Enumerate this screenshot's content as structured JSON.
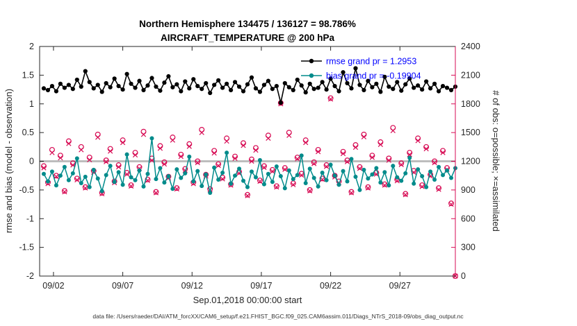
{
  "chart_data": {
    "type": "line",
    "title_line1": "Northern Hemisphere 134475 / 136127 = 98.786%",
    "title_line2": "AIRCRAFT_TEMPERATURE @ 200 hPa",
    "xlabel": "Sep.01,2018 00:00:00 start",
    "ylabel_left": "rmse and bias (model - observation)",
    "ylabel_right": "# of obs: o=possible; ×=assimilated",
    "footer": "data file: /Users/raeder/DAI/ATM_forcXX/CAM6_setup/f.e21.FHIST_BGC.f09_025.CAM6assim.011/Diags_NTrS_2018-09/obs_diag_output.nc",
    "xlim_days": [
      0,
      30
    ],
    "xticks_days": [
      1,
      6,
      11,
      16,
      21,
      26
    ],
    "xtick_labels": [
      "09/02",
      "09/07",
      "09/12",
      "09/17",
      "09/22",
      "09/27"
    ],
    "ylim_left": [
      -2,
      2
    ],
    "yticks_left": [
      -2,
      -1.5,
      -1,
      -0.5,
      0,
      0.5,
      1,
      1.5,
      2
    ],
    "ylim_right": [
      0,
      2400
    ],
    "yticks_right": [
      0,
      300,
      600,
      900,
      1200,
      1500,
      1800,
      2100,
      2400
    ],
    "grid": "off",
    "legend_position": "upper-right-inside",
    "colors": {
      "rmse": "#000000",
      "bias": "#008b8b",
      "obs": "#d70a53",
      "legend_text": "#0000ff",
      "zero_line": "#bdbdbd",
      "axis": "#262626"
    },
    "legend": [
      {
        "series": "rmse",
        "label": "rmse grand pr = 1.2953"
      },
      {
        "series": "bias",
        "label": "bias grand pr = -0.19904"
      }
    ],
    "rmse_grand_prior": 1.2953,
    "bias_grand_prior": -0.19904,
    "x_days": [
      0.3,
      0.6,
      0.9,
      1.2,
      1.5,
      1.8,
      2.1,
      2.4,
      2.7,
      3,
      3.3,
      3.6,
      3.9,
      4.2,
      4.5,
      4.8,
      5.1,
      5.4,
      5.7,
      6,
      6.3,
      6.6,
      6.9,
      7.2,
      7.5,
      7.8,
      8.1,
      8.4,
      8.7,
      9,
      9.3,
      9.6,
      9.9,
      10.2,
      10.5,
      10.8,
      11.1,
      11.4,
      11.7,
      12,
      12.3,
      12.6,
      12.9,
      13.2,
      13.5,
      13.8,
      14.1,
      14.4,
      14.7,
      15,
      15.3,
      15.6,
      15.9,
      16.2,
      16.5,
      16.8,
      17.1,
      17.4,
      17.7,
      18,
      18.3,
      18.6,
      18.9,
      19.2,
      19.5,
      19.8,
      20.1,
      20.4,
      20.7,
      21,
      21.3,
      21.6,
      21.9,
      22.2,
      22.5,
      22.8,
      23.1,
      23.4,
      23.7,
      24,
      24.3,
      24.6,
      24.9,
      25.2,
      25.5,
      25.8,
      26.1,
      26.4,
      26.7,
      27,
      27.3,
      27.6,
      27.9,
      28.2,
      28.5,
      28.8,
      29.1,
      29.4,
      29.7,
      30
    ],
    "series": [
      {
        "name": "rmse",
        "axis": "left",
        "marker": "filled-circle",
        "color_key": "rmse",
        "values": [
          1.27,
          1.24,
          1.31,
          1.22,
          1.35,
          1.28,
          1.33,
          1.26,
          1.42,
          1.3,
          1.57,
          1.38,
          1.27,
          1.33,
          1.21,
          1.36,
          1.29,
          1.44,
          1.31,
          1.25,
          1.52,
          1.35,
          1.28,
          1.4,
          1.24,
          1.32,
          1.45,
          1.3,
          1.23,
          1.37,
          1.48,
          1.29,
          1.34,
          1.22,
          1.39,
          1.27,
          1.43,
          1.31,
          1.26,
          1.36,
          1.19,
          1.33,
          1.41,
          1.28,
          1.35,
          1.24,
          1.38,
          1.3,
          1.22,
          1.34,
          1.46,
          1.27,
          1.21,
          1.33,
          1.4,
          1.26,
          1.31,
          1.02,
          1.36,
          1.29,
          1.24,
          1.42,
          1.32,
          1.2,
          1.35,
          1.26,
          1.28,
          1.38,
          1.25,
          1.44,
          1.31,
          1.22,
          1.55,
          1.36,
          1.27,
          1.62,
          1.33,
          1.24,
          1.4,
          1.29,
          1.35,
          1.21,
          1.47,
          1.3,
          1.26,
          1.38,
          1.23,
          1.34,
          1.44,
          1.28,
          1.32,
          1.25,
          1.39,
          1.27,
          1.35,
          1.22,
          1.31,
          1.28,
          1.24,
          1.3
        ]
      },
      {
        "name": "bias",
        "axis": "left",
        "marker": "filled-circle",
        "color_key": "bias",
        "values": [
          -0.22,
          -0.35,
          -0.18,
          -0.42,
          -0.25,
          -0.1,
          -0.33,
          -0.21,
          0.05,
          -0.38,
          -0.27,
          -0.45,
          -0.15,
          -0.3,
          -0.52,
          -0.24,
          -0.08,
          -0.36,
          -0.19,
          -0.41,
          0.12,
          -0.28,
          -0.33,
          -0.16,
          -0.44,
          -0.22,
          0.4,
          -0.31,
          -0.12,
          -0.37,
          -0.26,
          -0.48,
          -0.14,
          -0.29,
          -0.21,
          0.08,
          -0.35,
          -0.17,
          -0.43,
          -0.23,
          -0.55,
          -0.11,
          -0.32,
          -0.2,
          0.15,
          -0.39,
          -0.25,
          -0.13,
          -0.34,
          -0.45,
          -0.18,
          -0.28,
          0.02,
          -0.4,
          -0.22,
          -0.36,
          -0.09,
          -0.26,
          -0.47,
          -0.16,
          -0.31,
          -0.24,
          0.1,
          -0.38,
          -0.13,
          -0.29,
          -0.44,
          -0.2,
          -0.33,
          -0.06,
          -0.25,
          -0.41,
          -0.17,
          -0.35,
          0.04,
          -0.27,
          -0.5,
          -0.15,
          -0.3,
          -0.23,
          -0.12,
          -0.37,
          -0.19,
          -0.42,
          -0.08,
          -0.28,
          -0.34,
          -0.21,
          0.06,
          -0.39,
          -0.14,
          -0.26,
          -0.45,
          -0.18,
          -0.32,
          -0.1,
          -0.24,
          -0.16,
          -0.29,
          -0.12
        ]
      },
      {
        "name": "obs_possible",
        "axis": "right",
        "marker": "open-circle",
        "color_key": "obs",
        "values": [
          1150,
          980,
          1320,
          1050,
          1260,
          890,
          1410,
          1180,
          1020,
          1350,
          930,
          1240,
          1100,
          1480,
          870,
          1210,
          1330,
          990,
          1160,
          1420,
          1080,
          950,
          1290,
          1140,
          1510,
          1010,
          1230,
          880,
          1360,
          1190,
          1040,
          1450,
          920,
          1270,
          1120,
          1380,
          980,
          1200,
          1530,
          1060,
          910,
          1310,
          1170,
          1030,
          1440,
          960,
          1250,
          1090,
          1390,
          850,
          1220,
          1340,
          1000,
          1150,
          1470,
          1110,
          940,
          1810,
          1130,
          1500,
          970,
          1240,
          1070,
          1420,
          900,
          1190,
          1320,
          1020,
          1160,
          1860,
          1050,
          990,
          1300,
          1210,
          880,
          1370,
          1140,
          1480,
          930,
          1260,
          1080,
          1400,
          960,
          1230,
          1550,
          1010,
          1180,
          860,
          1290,
          1100,
          1440,
          950,
          1350,
          1060,
          1200,
          920,
          1310,
          1130,
          760,
          0
        ]
      },
      {
        "name": "obs_assimilated",
        "axis": "right",
        "marker": "x",
        "color_key": "obs",
        "values": [
          1130,
          965,
          1290,
          1040,
          1235,
          880,
          1385,
          1160,
          1005,
          1320,
          920,
          1215,
          1085,
          1450,
          860,
          1195,
          1305,
          975,
          1140,
          1395,
          1065,
          940,
          1265,
          1125,
          1480,
          1000,
          1210,
          870,
          1335,
          1170,
          1025,
          1420,
          910,
          1250,
          1105,
          1355,
          965,
          1185,
          1500,
          1045,
          900,
          1285,
          1155,
          1015,
          1410,
          950,
          1230,
          1075,
          1365,
          840,
          1200,
          1315,
          990,
          1135,
          1440,
          1095,
          930,
          1800,
          1115,
          1470,
          955,
          1225,
          1055,
          1395,
          890,
          1175,
          1300,
          1010,
          1145,
          1850,
          1035,
          975,
          1280,
          1195,
          870,
          1345,
          1125,
          1455,
          920,
          1240,
          1065,
          1375,
          950,
          1210,
          1520,
          995,
          1165,
          850,
          1270,
          1085,
          1415,
          935,
          1330,
          1045,
          1185,
          905,
          1290,
          1115,
          750,
          0
        ]
      }
    ]
  }
}
